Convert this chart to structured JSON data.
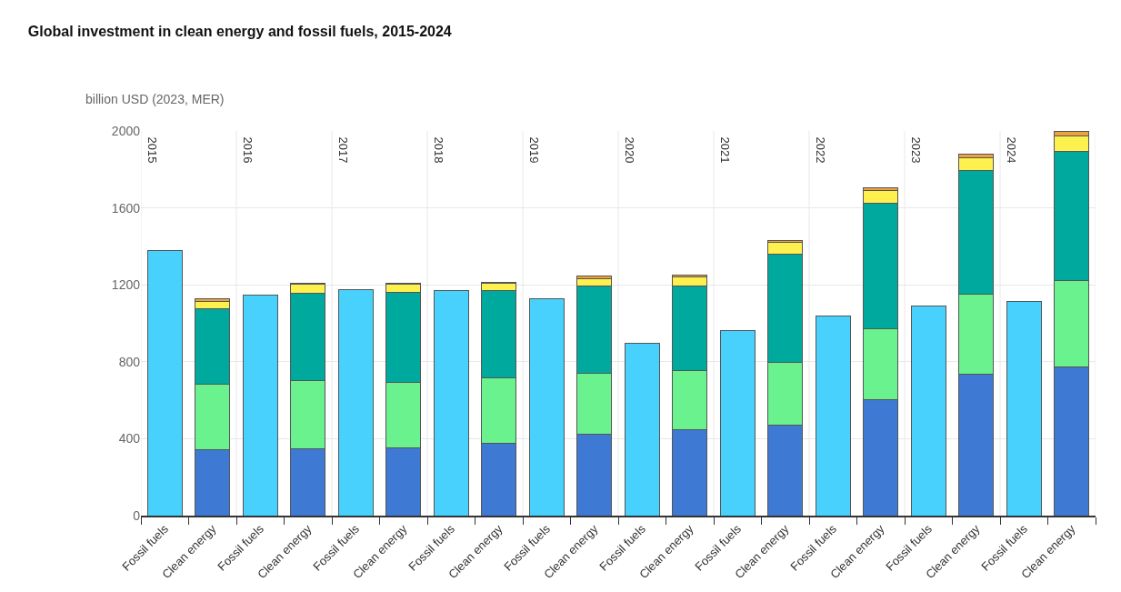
{
  "chart_data": {
    "type": "bar",
    "stacked": true,
    "title": "Global investment in clean energy and fossil fuels, 2015-2024",
    "ylabel": "billion USD (2023, MER)",
    "categories": [
      "Fossil fuels",
      "Clean energy",
      "Fossil fuels",
      "Clean energy",
      "Fossil fuels",
      "Clean energy",
      "Fossil fuels",
      "Clean energy",
      "Fossil fuels",
      "Clean energy",
      "Fossil fuels",
      "Clean energy",
      "Fossil fuels",
      "Clean energy",
      "Fossil fuels",
      "Clean energy",
      "Fossil fuels",
      "Clean energy",
      "Fossil fuels",
      "Clean energy"
    ],
    "annotations": [
      "2015",
      "2016",
      "2017",
      "2018",
      "2019",
      "2020",
      "2021",
      "2022",
      "2023",
      "2024"
    ],
    "series": [
      {
        "color": "#47d1fc",
        "values": [
          1377,
          null,
          1146,
          null,
          1176,
          null,
          1171,
          null,
          1126,
          null,
          894,
          null,
          961,
          null,
          1038,
          null,
          1089,
          null,
          1115,
          null
        ]
      },
      {
        "color": "#3e7ad3",
        "values": [
          null,
          342,
          null,
          348,
          null,
          353,
          null,
          377,
          null,
          425,
          null,
          445,
          null,
          472,
          null,
          605,
          null,
          736,
          null,
          773
        ]
      },
      {
        "color": "#6af28f",
        "values": [
          null,
          339,
          null,
          353,
          null,
          342,
          null,
          338,
          null,
          317,
          null,
          310,
          null,
          325,
          null,
          365,
          null,
          413,
          null,
          449
        ]
      },
      {
        "color": "#00a99d",
        "values": [
          null,
          394,
          null,
          456,
          null,
          467,
          null,
          453,
          null,
          454,
          null,
          441,
          null,
          564,
          null,
          656,
          null,
          647,
          null,
          670
        ]
      },
      {
        "color": "#fdf04f",
        "values": [
          null,
          40,
          null,
          45,
          null,
          40,
          null,
          38,
          null,
          37,
          null,
          46,
          null,
          59,
          null,
          62,
          null,
          65,
          null,
          82
        ]
      },
      {
        "color": "#eda33c",
        "values": [
          null,
          13,
          null,
          8,
          null,
          8,
          null,
          8,
          null,
          12,
          null,
          8,
          null,
          12,
          null,
          18,
          null,
          20,
          null,
          26
        ]
      }
    ],
    "ylim": [
      0,
      2000
    ],
    "yticks": [
      0,
      400,
      800,
      1200,
      1600,
      2000
    ],
    "grid": true
  }
}
